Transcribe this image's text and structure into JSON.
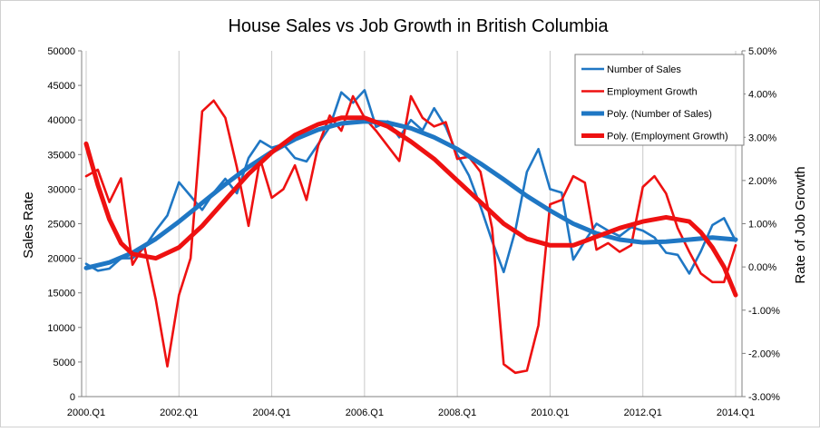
{
  "chart_data": {
    "type": "line",
    "title": "House Sales vs Job Growth in British Columbia",
    "ylabel": "Sales Rate",
    "y2label": "Rate of Job Growth",
    "ylim": [
      0,
      50000
    ],
    "y2lim": [
      -3.0,
      5.0
    ],
    "y_ticks": [
      "0",
      "5000",
      "10000",
      "15000",
      "20000",
      "25000",
      "30000",
      "35000",
      "40000",
      "45000",
      "50000"
    ],
    "y2_ticks": [
      "-3.00%",
      "-2.00%",
      "-1.00%",
      "0.00%",
      "1.00%",
      "2.00%",
      "3.00%",
      "4.00%",
      "5.00%"
    ],
    "x_ticks": [
      "2000.Q1",
      "2002.Q1",
      "2004.Q1",
      "2006.Q1",
      "2008.Q1",
      "2010.Q1",
      "2012.Q1",
      "2014.Q1"
    ],
    "x_tick_positions": [
      2000,
      2002,
      2004,
      2006,
      2008,
      2010,
      2012,
      2014
    ],
    "legend_position": "top-right",
    "grid": "vertical",
    "series": [
      {
        "name": "Number of Sales",
        "axis": "left",
        "color": "#1f77c4",
        "style": "thin",
        "x": [
          2000.0,
          2000.25,
          2000.5,
          2000.75,
          2001.0,
          2001.25,
          2001.5,
          2001.75,
          2002.0,
          2002.25,
          2002.5,
          2002.75,
          2003.0,
          2003.25,
          2003.5,
          2003.75,
          2004.0,
          2004.25,
          2004.5,
          2004.75,
          2005.0,
          2005.25,
          2005.5,
          2005.75,
          2006.0,
          2006.25,
          2006.5,
          2006.75,
          2007.0,
          2007.25,
          2007.5,
          2007.75,
          2008.0,
          2008.25,
          2008.5,
          2008.75,
          2009.0,
          2009.25,
          2009.5,
          2009.75,
          2010.0,
          2010.25,
          2010.5,
          2010.75,
          2011.0,
          2011.25,
          2011.5,
          2011.75,
          2012.0,
          2012.25,
          2012.5,
          2012.75,
          2013.0,
          2013.25,
          2013.5,
          2013.75,
          2014.0
        ],
        "values": [
          19200,
          18200,
          18500,
          20000,
          20000,
          21500,
          24000,
          26200,
          31000,
          29000,
          27000,
          29500,
          31500,
          29400,
          34500,
          37000,
          36000,
          36500,
          34500,
          34000,
          36500,
          39000,
          44000,
          42500,
          44300,
          39000,
          39800,
          37500,
          40000,
          38500,
          41700,
          39000,
          35000,
          32000,
          27500,
          22500,
          18000,
          24000,
          32500,
          35800,
          30000,
          29500,
          19800,
          22500,
          25000,
          24000,
          23200,
          24500,
          24000,
          23000,
          20800,
          20500,
          17800,
          21000,
          24800,
          25800,
          22500
        ]
      },
      {
        "name": "Employment Growth",
        "axis": "right",
        "color": "#ee1111",
        "style": "thin",
        "x": [
          2000.0,
          2000.25,
          2000.5,
          2000.75,
          2001.0,
          2001.25,
          2001.5,
          2001.75,
          2002.0,
          2002.25,
          2002.5,
          2002.75,
          2003.0,
          2003.25,
          2003.5,
          2003.75,
          2004.0,
          2004.25,
          2004.5,
          2004.75,
          2005.0,
          2005.25,
          2005.5,
          2005.75,
          2006.0,
          2006.25,
          2006.5,
          2006.75,
          2007.0,
          2007.25,
          2007.5,
          2007.75,
          2008.0,
          2008.25,
          2008.5,
          2008.75,
          2009.0,
          2009.25,
          2009.5,
          2009.75,
          2010.0,
          2010.25,
          2010.5,
          2010.75,
          2011.0,
          2011.25,
          2011.5,
          2011.75,
          2012.0,
          2012.25,
          2012.5,
          2012.75,
          2013.0,
          2013.25,
          2013.5,
          2013.75,
          2014.0
        ],
        "values": [
          2.1,
          2.25,
          1.5,
          2.05,
          0.05,
          0.5,
          -0.75,
          -2.3,
          -0.65,
          0.2,
          3.6,
          3.85,
          3.45,
          2.3,
          0.95,
          2.5,
          1.6,
          1.8,
          2.35,
          1.55,
          2.8,
          3.5,
          3.15,
          3.95,
          3.45,
          3.15,
          2.8,
          2.45,
          3.95,
          3.45,
          3.25,
          3.35,
          2.5,
          2.55,
          2.2,
          0.9,
          -2.25,
          -2.45,
          -2.4,
          -1.35,
          1.45,
          1.55,
          2.1,
          1.95,
          0.4,
          0.55,
          0.35,
          0.5,
          1.85,
          2.1,
          1.7,
          0.9,
          0.35,
          -0.15,
          -0.35,
          -0.35,
          0.5
        ]
      },
      {
        "name": "Poly. (Number of Sales)",
        "axis": "left",
        "color": "#1f77c4",
        "style": "thick",
        "x": [
          2000.0,
          2000.5,
          2001.0,
          2001.5,
          2002.0,
          2002.5,
          2003.0,
          2003.5,
          2004.0,
          2004.5,
          2005.0,
          2005.5,
          2006.0,
          2006.5,
          2007.0,
          2007.5,
          2008.0,
          2008.5,
          2009.0,
          2009.5,
          2010.0,
          2010.5,
          2011.0,
          2011.5,
          2012.0,
          2012.5,
          2013.0,
          2013.5,
          2014.0
        ],
        "values": [
          18600,
          19400,
          20800,
          22800,
          25300,
          28000,
          30700,
          33200,
          35400,
          37200,
          38600,
          39500,
          39800,
          39600,
          38800,
          37500,
          35800,
          33700,
          31400,
          29000,
          26900,
          25000,
          23600,
          22700,
          22300,
          22400,
          22700,
          23000,
          22700
        ]
      },
      {
        "name": "Poly. (Employment Growth)",
        "axis": "right",
        "color": "#ee1111",
        "style": "thick",
        "x": [
          2000.0,
          2000.25,
          2000.5,
          2000.75,
          2001.0,
          2001.5,
          2002.0,
          2002.5,
          2003.0,
          2003.5,
          2004.0,
          2004.5,
          2005.0,
          2005.5,
          2006.0,
          2006.5,
          2007.0,
          2007.5,
          2008.0,
          2008.5,
          2009.0,
          2009.5,
          2010.0,
          2010.5,
          2011.0,
          2011.5,
          2012.0,
          2012.5,
          2013.0,
          2013.25,
          2013.5,
          2013.75,
          2014.0
        ],
        "values": [
          2.85,
          1.9,
          1.1,
          0.55,
          0.3,
          0.2,
          0.45,
          0.95,
          1.55,
          2.15,
          2.65,
          3.05,
          3.3,
          3.45,
          3.45,
          3.25,
          2.9,
          2.5,
          2.0,
          1.5,
          1.0,
          0.65,
          0.5,
          0.5,
          0.7,
          0.9,
          1.05,
          1.15,
          1.05,
          0.8,
          0.45,
          0.0,
          -0.65
        ]
      }
    ]
  }
}
